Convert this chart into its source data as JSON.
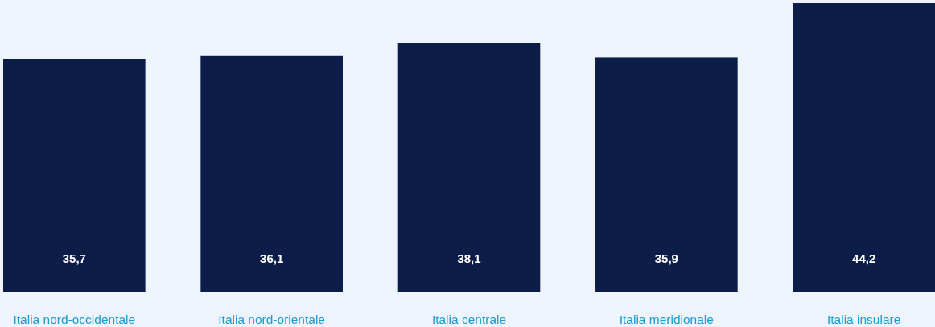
{
  "chart_data": {
    "type": "bar",
    "categories": [
      "Italia nord-occidentale",
      "Italia nord-orientale",
      "Italia centrale",
      "Italia meridionale",
      "Italia insulare"
    ],
    "values": [
      35.7,
      36.1,
      38.1,
      35.9,
      44.2
    ],
    "value_labels": [
      "35,7",
      "36,1",
      "38,1",
      "35,9",
      "44,2"
    ],
    "color": "#0b1d48"
  }
}
